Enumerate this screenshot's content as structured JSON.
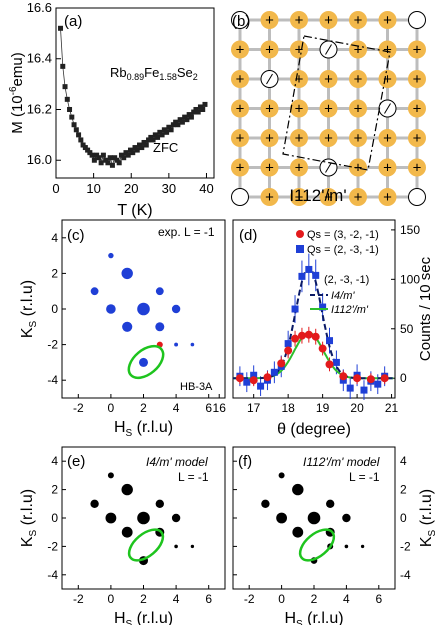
{
  "panel_a": {
    "label": "(a)",
    "compound": {
      "base": "Rb",
      "sub1": "0.89",
      "fe": "Fe",
      "sub2": "1.58",
      "se": "Se",
      "sub3": "2"
    },
    "note": "ZFC",
    "ylabel": "M (10",
    "ylabel_exp": "-6",
    "ylabel_unit": "emu)",
    "xlabel": "T (K)",
    "xticks": [
      "0",
      "10",
      "20",
      "30",
      "40"
    ],
    "yticks": [
      "16.0",
      "16.2",
      "16.4",
      "16.6"
    ],
    "color": "#222222"
  },
  "panel_b": {
    "label": "(b)",
    "caption": "I112'/m'",
    "up_color": "#f2b84b",
    "up_symbol": "+",
    "down_symbol": "−",
    "tilted_symbol": "/"
  },
  "panel_c": {
    "label": "(c)",
    "note": "exp. L = -1",
    "instrument": "HB-3A",
    "color": "#1f3fd6",
    "red": "#e31a1c"
  },
  "panel_d": {
    "label": "(d)",
    "legend": {
      "red": "Qs = (3, -2, -1)",
      "blue": "Qs = (2, -3, -1)",
      "curve_title": "(2, -3, -1)",
      "model1": "I4/m'",
      "model2": "I112'/m'"
    },
    "xlabel": "θ (degree)",
    "ylabel_right": "Counts / 10 sec",
    "xticks": [
      "16",
      "17",
      "18",
      "19",
      "20",
      "21"
    ],
    "yticks": [
      "0",
      "50",
      "100",
      "150"
    ],
    "colors": {
      "red": "#e31a1c",
      "blue": "#1f3fd6",
      "model1": "#0a1a66",
      "model2": "#2dbf2d"
    }
  },
  "panel_e": {
    "label": "(e)",
    "model": "I4/m' model",
    "note": "L = -1"
  },
  "panel_f": {
    "label": "(f)",
    "model": "I112'/m' model",
    "note": "L = -1"
  },
  "hk_axes": {
    "xlabel": "H",
    "xlabel_sub": "S",
    "xlabel_unit": " (r.l.u)",
    "ylabel": "K",
    "ylabel_sub": "S",
    "ylabel_unit": " (r.l.u)",
    "xticks": [
      "-2",
      "0",
      "2",
      "4",
      "6"
    ],
    "yticks": [
      "4",
      "2",
      "0",
      "-2",
      "-4"
    ]
  },
  "highlight_color": "#1ec41e",
  "chart_data": [
    {
      "type": "line",
      "title": "",
      "xlabel": "T (K)",
      "ylabel": "M (10^-6 emu)",
      "xlim": [
        0,
        42
      ],
      "ylim": [
        15.93,
        16.6
      ],
      "series": [
        {
          "name": "ZFC",
          "x": [
            1.2,
            1.8,
            2.4,
            3,
            3.6,
            4.2,
            4.8,
            5.4,
            6,
            6.6,
            7.2,
            7.8,
            8.4,
            9,
            9.6,
            10.2,
            10.8,
            11.4,
            12,
            12.6,
            13.2,
            13.8,
            14.4,
            15,
            15.6,
            16.2,
            16.8,
            17.4,
            18,
            18.6,
            19.2,
            19.8,
            20.4,
            21,
            21.6,
            22.2,
            22.8,
            23.4,
            24,
            24.6,
            25.2,
            25.8,
            26.4,
            27,
            27.6,
            28.2,
            28.8,
            29.4,
            30,
            30.6,
            31.2,
            31.8,
            32.4,
            33,
            33.6,
            34.2,
            34.8,
            35.4,
            36,
            36.6,
            37.2,
            37.8,
            38.4,
            39,
            39.6
          ],
          "y": [
            16.52,
            16.37,
            16.29,
            16.24,
            16.2,
            16.17,
            16.14,
            16.12,
            16.1,
            16.08,
            16.06,
            16.05,
            16.04,
            16.03,
            16.02,
            16.0,
            16.02,
            16.01,
            15.99,
            16.02,
            16.0,
            15.99,
            16.01,
            15.98,
            16.01,
            16.0,
            15.99,
            16.02,
            16.01,
            16.03,
            16.02,
            16.04,
            16.03,
            16.05,
            16.04,
            16.06,
            16.05,
            16.07,
            16.06,
            16.08,
            16.09,
            16.08,
            16.1,
            16.09,
            16.11,
            16.1,
            16.12,
            16.11,
            16.13,
            16.12,
            16.14,
            16.15,
            16.14,
            16.16,
            16.15,
            16.17,
            16.16,
            16.18,
            16.17,
            16.19,
            16.2,
            16.19,
            16.21,
            16.2,
            16.22
          ]
        }
      ]
    },
    {
      "type": "scatter",
      "title": "exp. L = -1",
      "xlabel": "Hs (r.l.u)",
      "ylabel": "Ks (r.l.u)",
      "xlim": [
        -3,
        7
      ],
      "ylim": [
        -5,
        5
      ],
      "points": [
        {
          "x": 0,
          "y": 3,
          "s": 0.25,
          "c": "blue"
        },
        {
          "x": -1,
          "y": 1,
          "s": 0.45,
          "c": "blue"
        },
        {
          "x": 1,
          "y": 2,
          "s": 0.75,
          "c": "blue"
        },
        {
          "x": 3,
          "y": 1,
          "s": 0.45,
          "c": "blue"
        },
        {
          "x": 0,
          "y": 0,
          "s": 0.6,
          "c": "blue"
        },
        {
          "x": 2,
          "y": 0,
          "s": 0.85,
          "c": "blue"
        },
        {
          "x": 1,
          "y": -1,
          "s": 0.65,
          "c": "blue"
        },
        {
          "x": 3,
          "y": -1,
          "s": 0.55,
          "c": "blue"
        },
        {
          "x": 4,
          "y": 0,
          "s": 0.5,
          "c": "blue"
        },
        {
          "x": 2,
          "y": -3,
          "s": 0.55,
          "c": "blue"
        },
        {
          "x": 3,
          "y": -2,
          "s": 0.3,
          "c": "red"
        },
        {
          "x": 4,
          "y": -2,
          "s": 0.12,
          "c": "blue"
        },
        {
          "x": 5,
          "y": -2,
          "s": 0.1,
          "c": "blue"
        }
      ]
    },
    {
      "type": "scatter",
      "title": "",
      "xlabel": "θ (degree)",
      "ylabel": "Counts / 10 sec",
      "xlim": [
        16.4,
        21.1
      ],
      "ylim": [
        -20,
        160
      ],
      "series": [
        {
          "name": "Qs = (3, -2, -1)",
          "kind": "points",
          "x": [
            16.6,
            17,
            17.4,
            17.8,
            18.0,
            18.2,
            18.4,
            18.6,
            18.8,
            19.0,
            19.2,
            19.6,
            20.0,
            20.4,
            20.8
          ],
          "y": [
            0,
            -2,
            1,
            15,
            28,
            40,
            43,
            44,
            42,
            30,
            14,
            2,
            0,
            -1,
            0
          ],
          "err": [
            6,
            6,
            6,
            7,
            8,
            8,
            8,
            8,
            8,
            7,
            7,
            6,
            6,
            6,
            6
          ]
        },
        {
          "name": "Qs = (2, -3, -1)",
          "kind": "points",
          "x": [
            16.6,
            16.8,
            17.0,
            17.2,
            17.4,
            17.6,
            17.8,
            18.0,
            18.2,
            18.4,
            18.6,
            18.8,
            19.0,
            19.2,
            19.4,
            19.6,
            19.8,
            20.0,
            20.2,
            20.4,
            20.6,
            20.8
          ],
          "y": [
            2,
            -4,
            3,
            -8,
            -2,
            6,
            12,
            35,
            70,
            103,
            110,
            104,
            72,
            38,
            16,
            -2,
            -10,
            3,
            -12,
            -3,
            -6,
            2
          ],
          "err": [
            10,
            10,
            10,
            10,
            10,
            11,
            11,
            13,
            14,
            16,
            16,
            16,
            14,
            13,
            12,
            11,
            11,
            11,
            10,
            10,
            10,
            10
          ]
        },
        {
          "name": "I4/m'",
          "kind": "curve",
          "center": 18.6,
          "amplitude": 112,
          "sigma": 0.38
        },
        {
          "name": "I112'/m'",
          "kind": "curve",
          "center": 18.6,
          "amplitude": 46,
          "sigma": 0.42
        }
      ]
    },
    {
      "type": "scatter",
      "title": "I4/m' model L = -1",
      "xlim": [
        -3,
        7
      ],
      "ylim": [
        -5,
        5
      ],
      "points": [
        {
          "x": 0,
          "y": 3,
          "s": 0.3
        },
        {
          "x": -1,
          "y": 1,
          "s": 0.5
        },
        {
          "x": 1,
          "y": 2,
          "s": 0.75
        },
        {
          "x": 3,
          "y": 1,
          "s": 0.5
        },
        {
          "x": 0,
          "y": 0,
          "s": 0.7
        },
        {
          "x": 2,
          "y": 0,
          "s": 0.85
        },
        {
          "x": 1,
          "y": -1,
          "s": 0.7
        },
        {
          "x": 3,
          "y": -1,
          "s": 0.55
        },
        {
          "x": 4,
          "y": 0,
          "s": 0.5
        },
        {
          "x": 2,
          "y": -3,
          "s": 0.55
        },
        {
          "x": 4,
          "y": -2,
          "s": 0.1
        },
        {
          "x": 5,
          "y": -2,
          "s": 0.08
        }
      ]
    },
    {
      "type": "scatter",
      "title": "I112'/m' model L = -1",
      "xlim": [
        -3,
        7
      ],
      "ylim": [
        -5,
        5
      ],
      "points": [
        {
          "x": 0,
          "y": 3,
          "s": 0.3
        },
        {
          "x": -1,
          "y": 1,
          "s": 0.5
        },
        {
          "x": 1,
          "y": 2,
          "s": 0.75
        },
        {
          "x": 3,
          "y": 1,
          "s": 0.5
        },
        {
          "x": 0,
          "y": 0,
          "s": 0.7
        },
        {
          "x": 2,
          "y": 0,
          "s": 0.85
        },
        {
          "x": 1,
          "y": -1,
          "s": 0.7
        },
        {
          "x": 3,
          "y": -1,
          "s": 0.55
        },
        {
          "x": 4,
          "y": 0,
          "s": 0.5
        },
        {
          "x": 2,
          "y": -3,
          "s": 0.35
        },
        {
          "x": 3,
          "y": -2,
          "s": 0.3
        },
        {
          "x": 4,
          "y": -2,
          "s": 0.1
        },
        {
          "x": 5,
          "y": -2,
          "s": 0.08
        }
      ]
    }
  ]
}
